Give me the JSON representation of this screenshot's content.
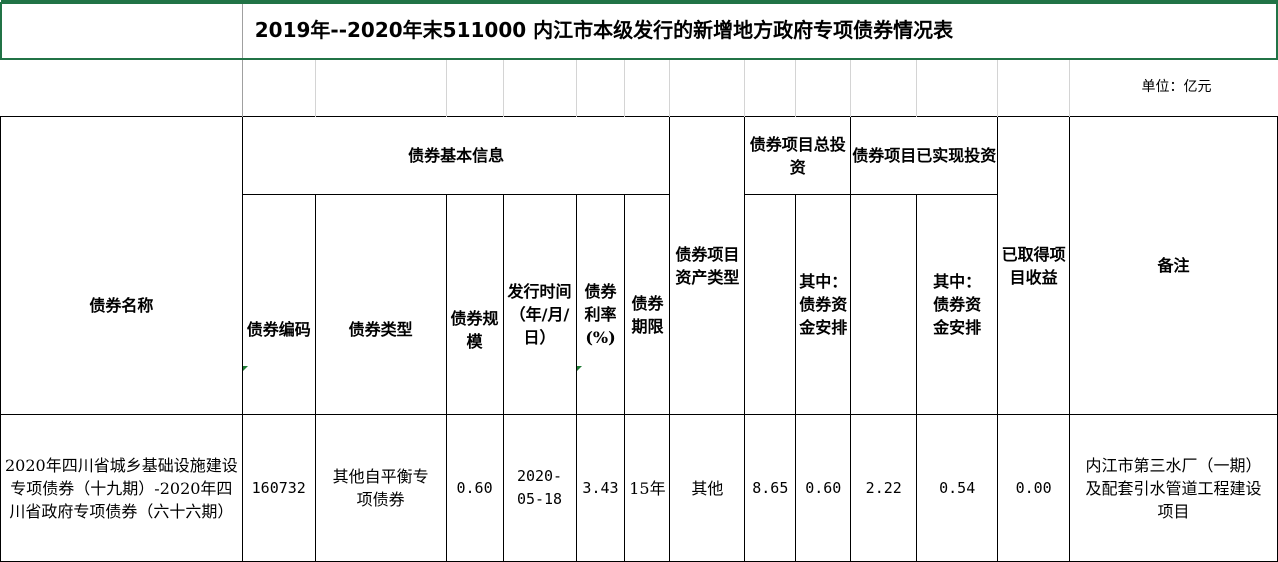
{
  "title": "2019年--2020年末511000 内江市本级发行的新增地方政府专项债券情况表",
  "unit": "单位：亿元",
  "headers": {
    "bond_name": "债券名称",
    "basic_info": "债券基本信息",
    "bond_code": "债券编码",
    "bond_type": "债券类型",
    "bond_scale": "债券规模",
    "issue_date": "发行时间（年/月/日）",
    "rate": "债券利率(%)",
    "term": "债券期限",
    "asset_type": "债券项目资产类型",
    "total_investment": "债券项目总投资",
    "total_inv_bond": "其中：债券资金安排",
    "realized_investment": "债券项目已实现投资",
    "realized_inv_bond": "其中：债券资金安排",
    "income": "已取得项目收益",
    "remarks": "备注"
  },
  "rows": [
    {
      "bond_name": "2020年四川省城乡基础设施建设专项债券（十九期）-2020年四川省政府专项债券（六十六期）",
      "bond_code": "160732",
      "bond_type": "其他自平衡专项债券",
      "bond_scale": "0.60",
      "issue_date": "2020-05-18",
      "rate": "3.43",
      "term": "15年",
      "asset_type": "其他",
      "total_investment": "8.65",
      "total_inv_bond": "0.60",
      "realized_investment": "2.22",
      "realized_inv_bond": "0.54",
      "income": "0.00",
      "remarks": "内江市第三水厂（一期）及配套引水管道工程建设项目"
    }
  ],
  "colors": {
    "selection_border": "#217346",
    "comment_marker": "#1e7b34"
  }
}
